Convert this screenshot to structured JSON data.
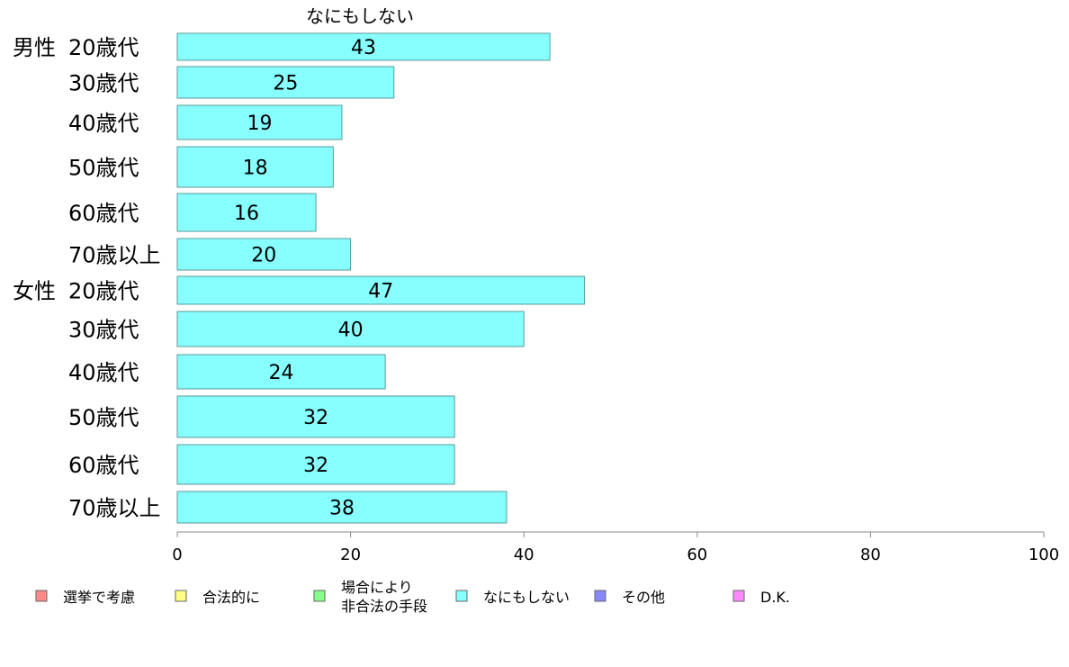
{
  "chart_data": {
    "type": "bar",
    "orientation": "horizontal",
    "title": "なにもしない",
    "groups": [
      {
        "label": "男性",
        "categories": [
          "20歳代",
          "30歳代",
          "40歳代",
          "50歳代",
          "60歳代",
          "70歳以上"
        ],
        "values": [
          43,
          25,
          19,
          18,
          16,
          20
        ]
      },
      {
        "label": "女性",
        "categories": [
          "20歳代",
          "30歳代",
          "40歳代",
          "50歳代",
          "60歳代",
          "70歳以上"
        ],
        "values": [
          47,
          40,
          24,
          32,
          32,
          38
        ]
      }
    ],
    "value_labels": [
      "43",
      "25",
      "19",
      "18",
      "16",
      "20",
      "47",
      "40",
      "24",
      "32",
      "32",
      "38"
    ],
    "xlim": [
      0,
      100
    ],
    "xticks": [
      "0",
      "20",
      "40",
      "60",
      "80",
      "100"
    ],
    "bar_color": "#88ffff",
    "legend": {
      "position": "bottom",
      "items": [
        {
          "lines": [
            "選挙で考慮"
          ],
          "color": "#ff8888"
        },
        {
          "lines": [
            "合法的に"
          ],
          "color": "#ffff88"
        },
        {
          "lines": [
            "場合により",
            "非合法の手段"
          ],
          "color": "#88ff88"
        },
        {
          "lines": [
            "なにもしない"
          ],
          "color": "#88ffff"
        },
        {
          "lines": [
            "その他"
          ],
          "color": "#8888ff"
        },
        {
          "lines": [
            "D.K."
          ],
          "color": "#ff88ff"
        }
      ]
    }
  }
}
